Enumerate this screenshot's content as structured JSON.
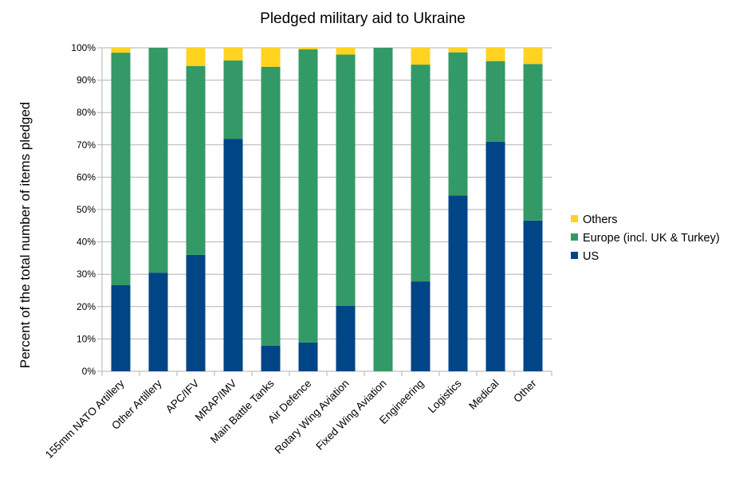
{
  "chart_data": {
    "type": "bar",
    "stacked": true,
    "title": "Pledged military aid to Ukraine",
    "xlabel": "",
    "ylabel": "Percent of the total number of items pledged",
    "ylim": [
      0,
      100
    ],
    "yticks": [
      "0%",
      "10%",
      "20%",
      "30%",
      "40%",
      "50%",
      "60%",
      "70%",
      "80%",
      "90%",
      "100%"
    ],
    "grid": true,
    "legend_position": "right",
    "categories": [
      "155mm NATO Artillery",
      "Other Artillery",
      "APC/IFV",
      "MRAP/IMV",
      "Main Battle Tanks",
      "Air Defence",
      "Rotary Wing Aviation",
      "Fixed Wing Aviation",
      "Engineering",
      "Logistics",
      "Medical",
      "Other"
    ],
    "series": [
      {
        "name": "US",
        "color": "#004586",
        "values": [
          26.6,
          30.5,
          36.0,
          71.8,
          7.9,
          8.9,
          20.2,
          0,
          27.8,
          54.3,
          71.0,
          46.6
        ]
      },
      {
        "name": "Europe (incl. UK & Turkey)",
        "color": "#339966",
        "values": [
          71.9,
          69.5,
          58.4,
          24.3,
          86.2,
          90.6,
          77.7,
          100,
          67.0,
          44.3,
          24.9,
          48.4
        ]
      },
      {
        "name": "Others",
        "color": "#ffd320",
        "values": [
          1.5,
          0,
          5.6,
          3.9,
          5.9,
          0.5,
          2.1,
          0,
          5.2,
          1.4,
          4.1,
          5.0
        ]
      }
    ]
  }
}
